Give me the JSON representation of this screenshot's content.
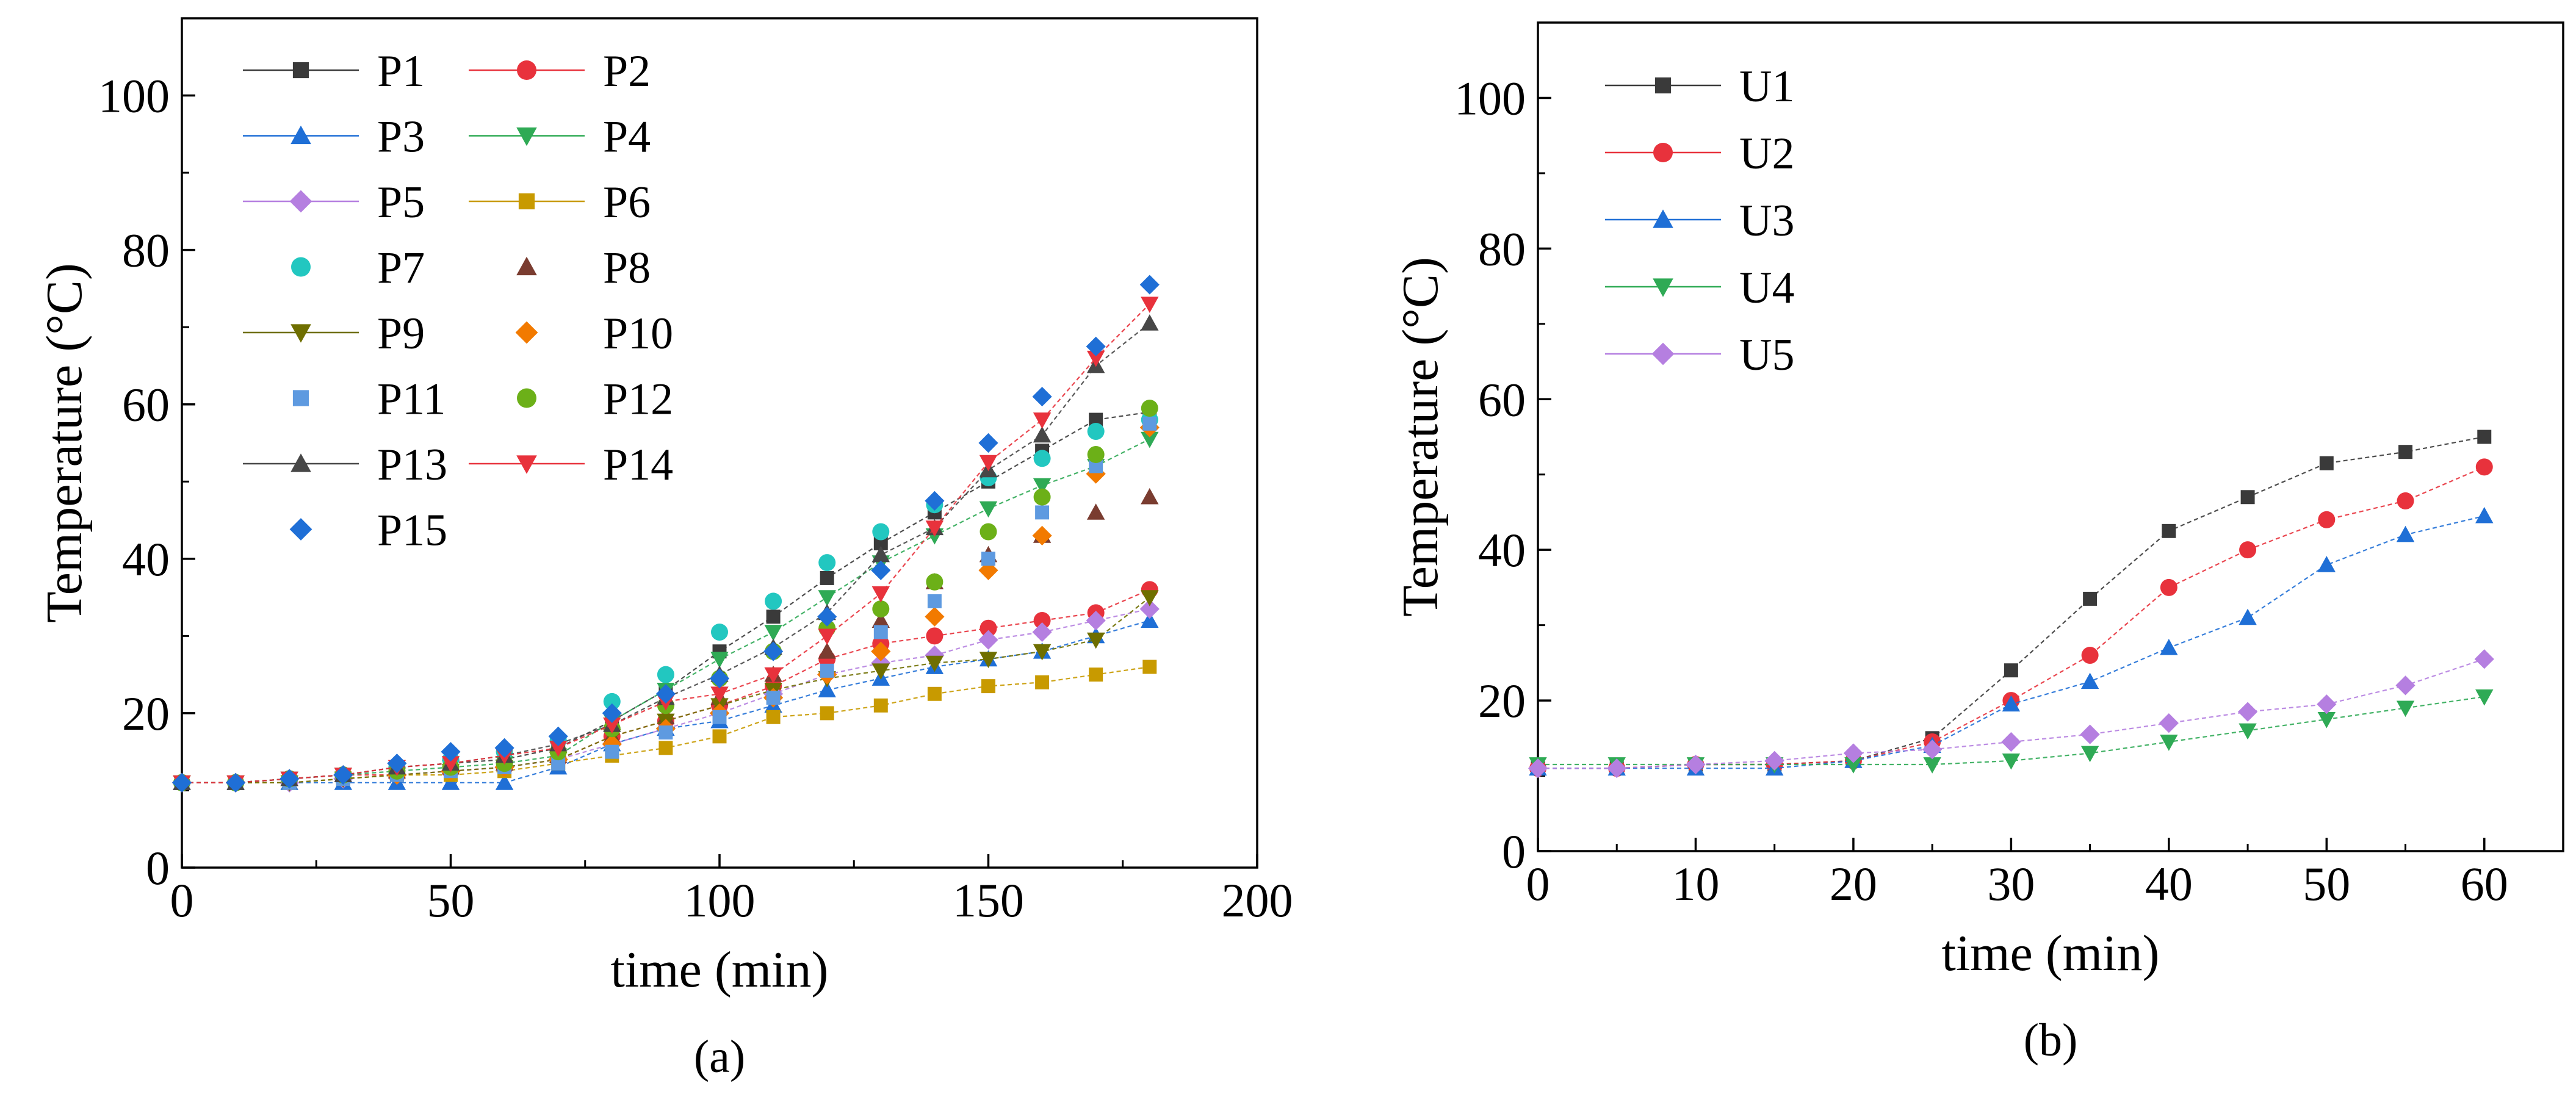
{
  "chart_data": [
    {
      "type": "line",
      "panel_label": "(a)",
      "title": "",
      "xlabel": "time (min)",
      "ylabel": "Temperature (°C)",
      "xlim": [
        0,
        200
      ],
      "ylim": [
        0,
        110
      ],
      "xticks": [
        "0",
        "50",
        "100",
        "150",
        "200"
      ],
      "yticks": [
        "0",
        "20",
        "40",
        "60",
        "80",
        "100"
      ],
      "legend_position": "top-left",
      "x": [
        0,
        10,
        20,
        30,
        40,
        50,
        60,
        70,
        80,
        90,
        100,
        110,
        120,
        130,
        140,
        150,
        160,
        170,
        180
      ],
      "series": [
        {
          "name": "P1",
          "color": "#3a3a3a",
          "marker": "square",
          "connected": true,
          "values": [
            11,
            11,
            11.5,
            12,
            13,
            13.5,
            14,
            15.5,
            19,
            23,
            28,
            32.5,
            37.5,
            42,
            46,
            50,
            54,
            58,
            59
          ]
        },
        {
          "name": "P2",
          "color": "#e8323c",
          "marker": "circle",
          "connected": true,
          "values": [
            11,
            11,
            11.5,
            12,
            12,
            12.5,
            13,
            14,
            17,
            19,
            21,
            23.5,
            27,
            29,
            30,
            31,
            32,
            33,
            36
          ]
        },
        {
          "name": "P3",
          "color": "#1f6fd6",
          "marker": "triangle-up",
          "connected": true,
          "values": [
            11,
            11,
            11,
            11,
            11,
            11,
            11,
            13,
            16,
            18,
            19,
            21,
            23,
            24.5,
            26,
            27,
            28,
            30,
            32
          ]
        },
        {
          "name": "P4",
          "color": "#2faa55",
          "marker": "triangle-down",
          "connected": true,
          "values": [
            11,
            11,
            11.5,
            12,
            12.5,
            13,
            13.5,
            14.5,
            19,
            23,
            27,
            30.5,
            35,
            39.5,
            43,
            46.5,
            49.5,
            52,
            55.5
          ]
        },
        {
          "name": "P5",
          "color": "#b57fe0",
          "marker": "diamond",
          "connected": true,
          "values": [
            11,
            11,
            11,
            11.5,
            12,
            12.5,
            13,
            14,
            16,
            18,
            20,
            22.5,
            25,
            26.5,
            27.5,
            29.5,
            30.5,
            32,
            33.5
          ]
        },
        {
          "name": "P6",
          "color": "#c89a00",
          "marker": "square",
          "connected": true,
          "values": [
            11,
            11,
            11,
            11.5,
            12,
            12,
            12.5,
            13.5,
            14.5,
            15.5,
            17,
            19.5,
            20,
            21,
            22.5,
            23.5,
            24,
            25,
            26
          ]
        },
        {
          "name": "P7",
          "color": "#22c7c0",
          "marker": "circle",
          "connected": false,
          "values": [
            11,
            11,
            11.5,
            12,
            13,
            14,
            15,
            16.5,
            21.5,
            25,
            30.5,
            34.5,
            39.5,
            43.5,
            47,
            50.5,
            53,
            56.5,
            58
          ]
        },
        {
          "name": "P8",
          "color": "#7a3c30",
          "marker": "triangle-up",
          "connected": false,
          "values": [
            11,
            11,
            11.5,
            12,
            12.5,
            13,
            13.5,
            14.5,
            17,
            19.5,
            22,
            25,
            28,
            32,
            37,
            40.5,
            43,
            46,
            48
          ]
        },
        {
          "name": "P9",
          "color": "#6f6f00",
          "marker": "triangle-down",
          "connected": true,
          "values": [
            11,
            11,
            11,
            11.5,
            12,
            12.5,
            13,
            14,
            17,
            19,
            21,
            23,
            24.5,
            25.5,
            26.5,
            27,
            28,
            29.5,
            35
          ]
        },
        {
          "name": "P10",
          "color": "#f27a00",
          "marker": "diamond",
          "connected": false,
          "values": [
            11,
            11,
            11.5,
            12,
            12,
            12.5,
            13,
            14,
            16,
            18,
            20,
            22,
            25,
            28,
            32.5,
            38.5,
            43,
            51,
            57
          ]
        },
        {
          "name": "P11",
          "color": "#5e9ae0",
          "marker": "square",
          "connected": false,
          "values": [
            11,
            11,
            11,
            11.5,
            12,
            12.5,
            13,
            13.5,
            15,
            17.5,
            19.5,
            22,
            25.5,
            30.5,
            34.5,
            40,
            46,
            52,
            57.5
          ]
        },
        {
          "name": "P12",
          "color": "#6cb018",
          "marker": "circle",
          "connected": false,
          "values": [
            11,
            11,
            11.5,
            12,
            12.5,
            13,
            13.5,
            15,
            18,
            21,
            24.5,
            28,
            31,
            33.5,
            37,
            43.5,
            48,
            53.5,
            59.5
          ]
        },
        {
          "name": "P13",
          "color": "#474747",
          "marker": "triangle-up",
          "connected": true,
          "values": [
            11,
            11,
            11.5,
            12,
            13,
            13.5,
            14.5,
            16,
            18.5,
            22,
            25,
            28.5,
            33,
            40.5,
            44,
            51.5,
            56,
            65,
            70.5
          ]
        },
        {
          "name": "P14",
          "color": "#e8323c",
          "marker": "triangle-down",
          "connected": true,
          "values": [
            11,
            11,
            11.5,
            12,
            13,
            13.5,
            14.5,
            15.5,
            18.5,
            21.5,
            22.5,
            25,
            30,
            35.5,
            44,
            52.5,
            58,
            66,
            73
          ]
        },
        {
          "name": "P15",
          "color": "#1f6fd6",
          "marker": "diamond",
          "connected": false,
          "values": [
            11,
            11,
            11.5,
            12,
            13.5,
            15,
            15.5,
            17,
            20,
            22.5,
            24.5,
            28,
            32.5,
            38.5,
            47.5,
            55,
            61,
            67.5,
            75.5
          ]
        }
      ]
    },
    {
      "type": "line",
      "panel_label": "(b)",
      "title": "",
      "xlabel": "time (min)",
      "ylabel": "Temperature (°C)",
      "xlim": [
        0,
        65
      ],
      "ylim": [
        0,
        110
      ],
      "xticks": [
        "0",
        "10",
        "20",
        "30",
        "40",
        "50",
        "60"
      ],
      "yticks": [
        "0",
        "20",
        "40",
        "60",
        "80",
        "100"
      ],
      "legend_position": "top-left",
      "x": [
        0,
        5,
        10,
        15,
        20,
        25,
        30,
        35,
        40,
        45,
        50,
        55,
        60
      ],
      "series": [
        {
          "name": "U1",
          "color": "#3a3a3a",
          "marker": "square",
          "connected": true,
          "values": [
            11,
            11,
            11.5,
            11.5,
            12,
            15,
            24,
            33.5,
            42.5,
            47,
            51.5,
            53,
            55
          ]
        },
        {
          "name": "U2",
          "color": "#e8323c",
          "marker": "circle",
          "connected": true,
          "values": [
            11,
            11,
            11.5,
            11.5,
            12,
            14.5,
            20,
            26,
            35,
            40,
            44,
            46.5,
            51
          ]
        },
        {
          "name": "U3",
          "color": "#1f6fd6",
          "marker": "triangle-up",
          "connected": true,
          "values": [
            11,
            11,
            11,
            11,
            12,
            14,
            19.5,
            22.5,
            27,
            31,
            38,
            42,
            44.5
          ]
        },
        {
          "name": "U4",
          "color": "#2faa55",
          "marker": "triangle-down",
          "connected": true,
          "values": [
            11.5,
            11.5,
            11.5,
            11.5,
            11.5,
            11.5,
            12,
            13,
            14.5,
            16,
            17.5,
            19,
            20.5
          ]
        },
        {
          "name": "U5",
          "color": "#b57fe0",
          "marker": "diamond",
          "connected": true,
          "values": [
            11,
            11,
            11.5,
            12,
            13,
            13.5,
            14.5,
            15.5,
            17,
            18.5,
            19.5,
            22,
            25.5
          ]
        }
      ]
    }
  ]
}
